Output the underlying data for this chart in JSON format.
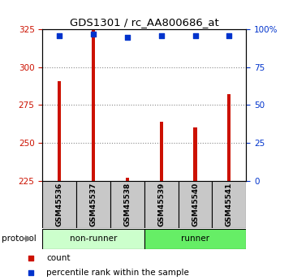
{
  "title": "GDS1301 / rc_AA800686_at",
  "samples": [
    "GSM45536",
    "GSM45537",
    "GSM45538",
    "GSM45539",
    "GSM45540",
    "GSM45541"
  ],
  "counts": [
    291,
    325,
    227,
    264,
    260,
    282
  ],
  "percentile_ranks": [
    96,
    97,
    95,
    96,
    96,
    96
  ],
  "ylim_left": [
    225,
    325
  ],
  "ylim_right": [
    0,
    100
  ],
  "yticks_left": [
    225,
    250,
    275,
    300,
    325
  ],
  "yticks_right": [
    0,
    25,
    50,
    75,
    100
  ],
  "ytick_labels_right": [
    "0",
    "25",
    "50",
    "75",
    "100%"
  ],
  "bar_color": "#cc1100",
  "scatter_color": "#0033cc",
  "grid_color": "#888888",
  "label_box_color": "#c8c8c8",
  "nonrunner_color": "#ccffcc",
  "runner_color": "#66ee66",
  "legend_count_color": "#cc1100",
  "legend_rank_color": "#0033cc",
  "left_tick_color": "#cc1100",
  "right_tick_color": "#0033cc"
}
